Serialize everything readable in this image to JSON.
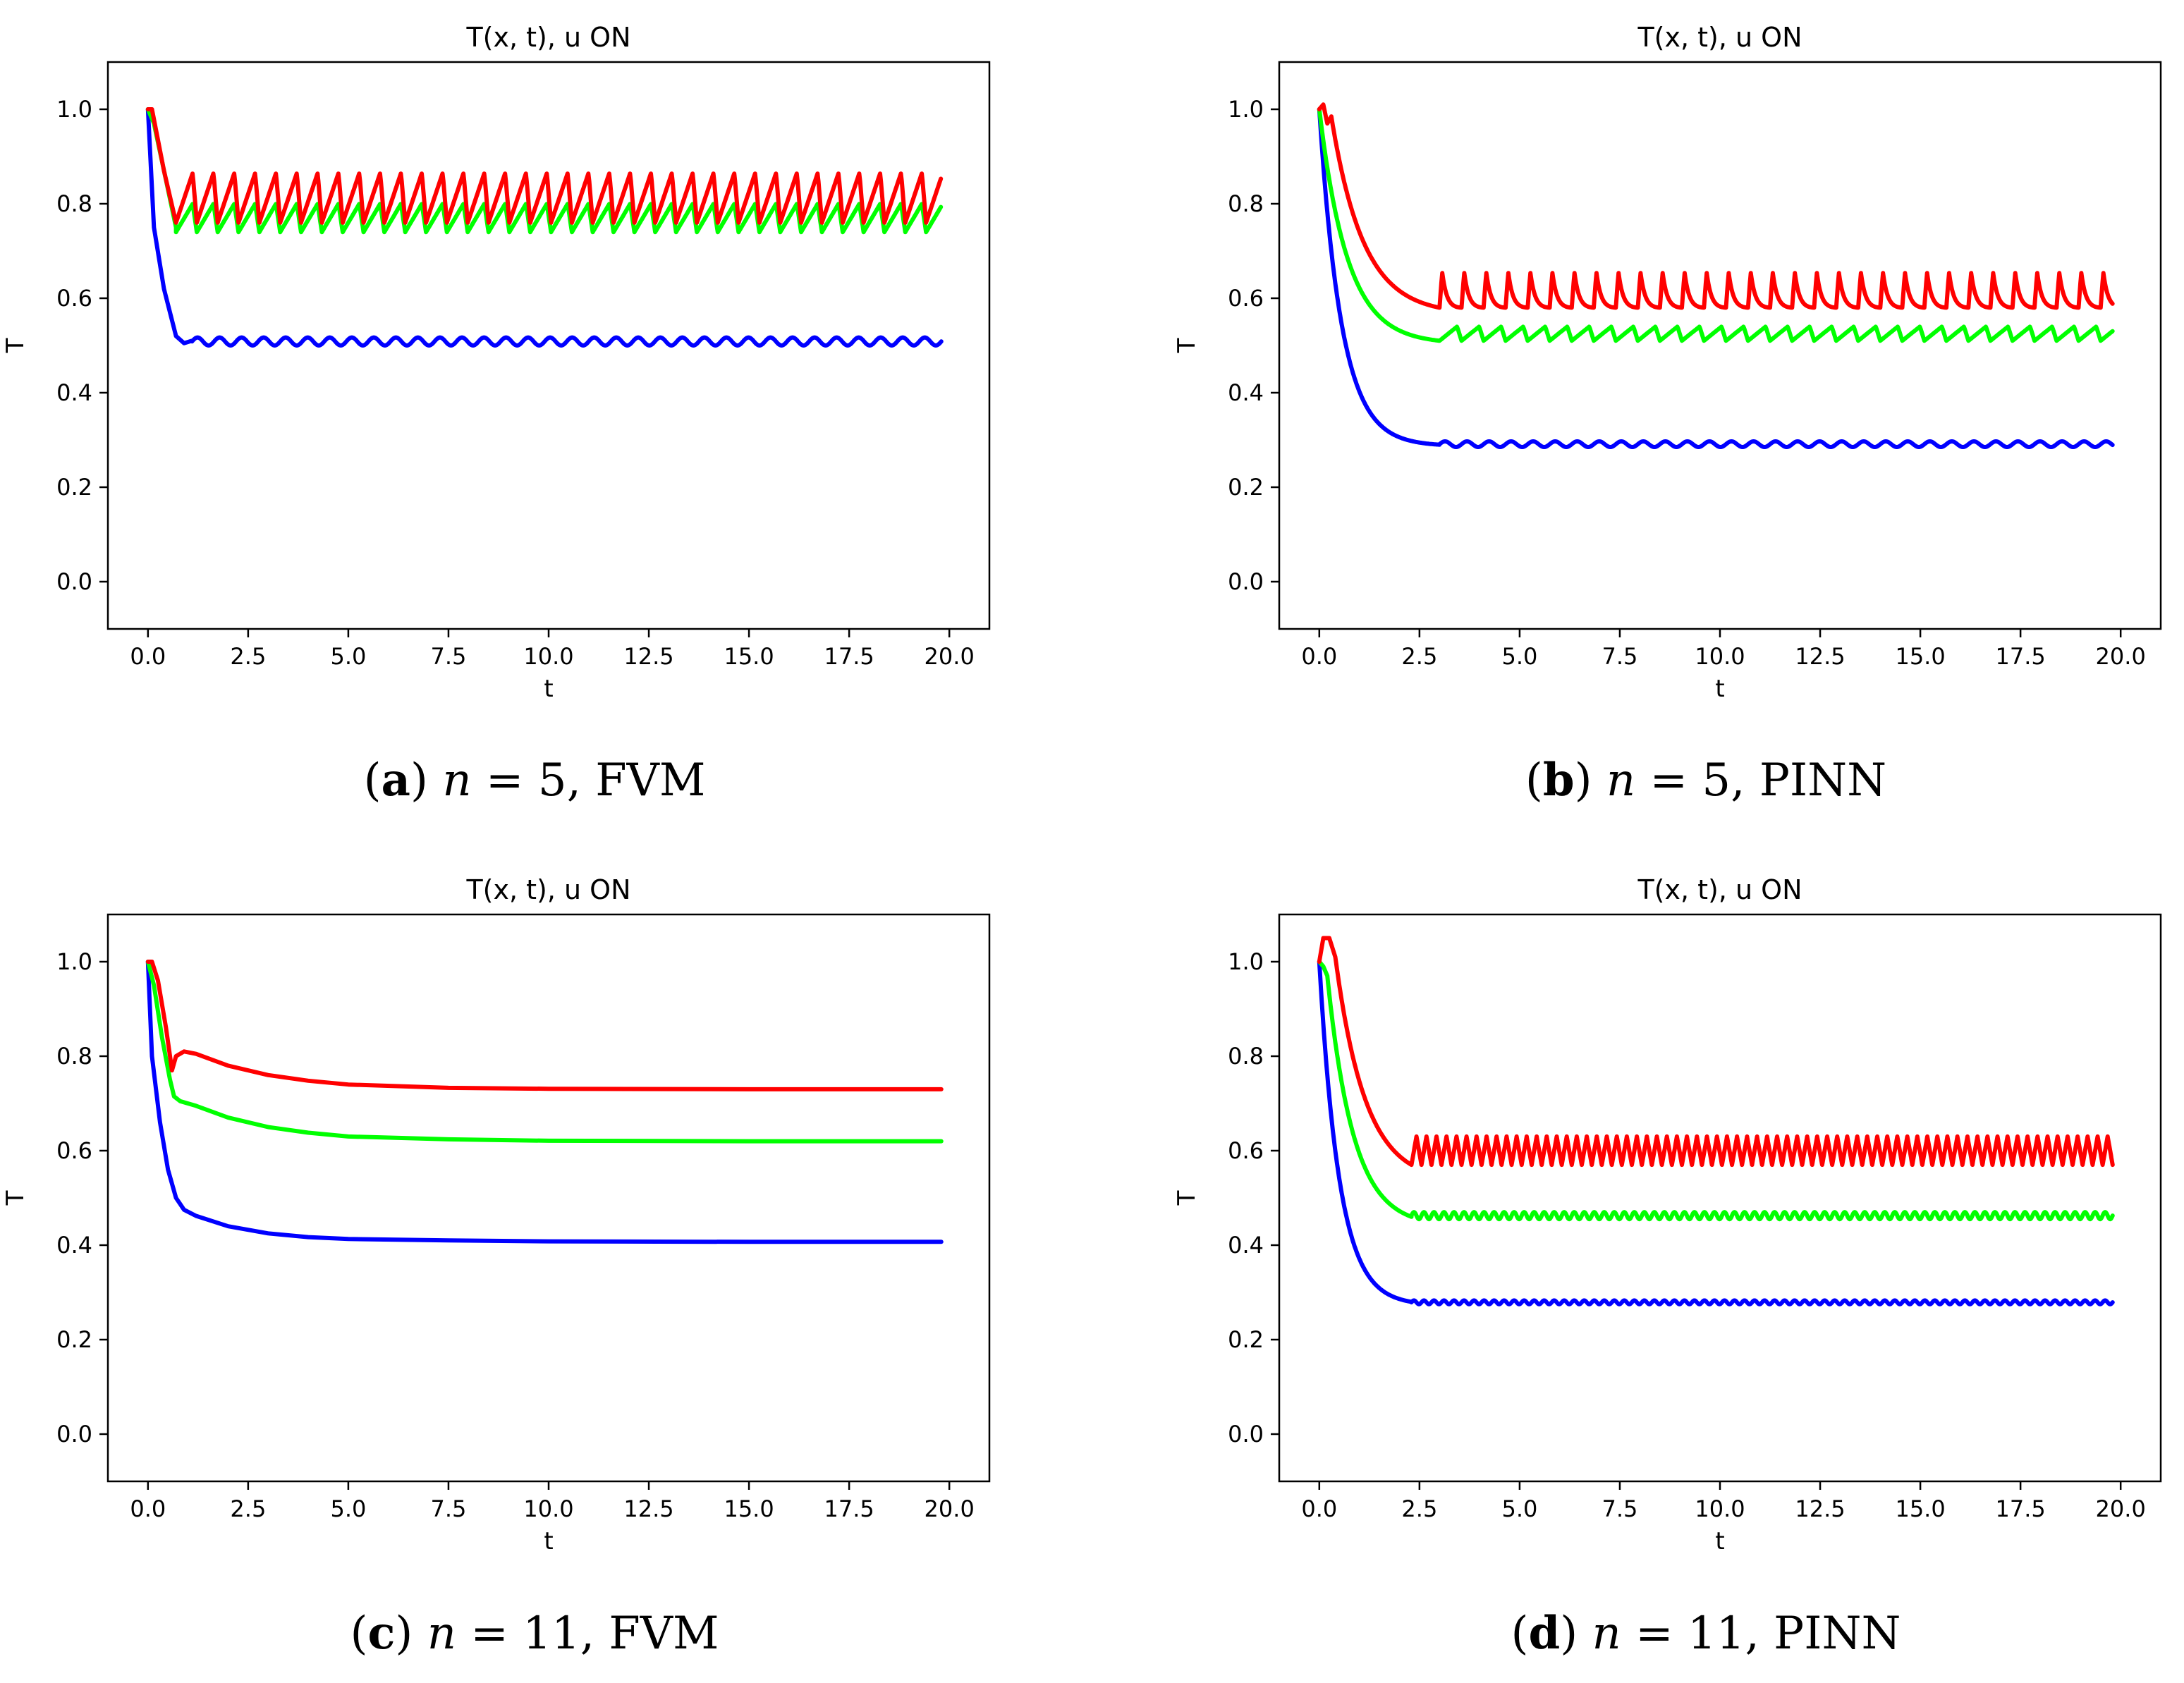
{
  "chart_data": [
    {
      "id": "a",
      "type": "line",
      "title": "T(x, t), u ON",
      "xlabel": "t",
      "ylabel": "T",
      "xlim": [
        -1.0,
        21.0
      ],
      "ylim": [
        -0.1,
        1.1
      ],
      "xticks": [
        "0.0",
        "2.5",
        "5.0",
        "7.5",
        "10.0",
        "12.5",
        "15.0",
        "17.5",
        "20.0"
      ],
      "yticks": [
        "0.0",
        "0.2",
        "0.4",
        "0.6",
        "0.8",
        "1.0"
      ],
      "caption": {
        "letter": "a",
        "var": "n",
        "rest": " = 5, FVM"
      },
      "series": [
        {
          "color": "#0000ff",
          "t_end": 19.8,
          "points": [
            [
              0,
              1.0
            ],
            [
              0.15,
              0.75
            ],
            [
              0.4,
              0.62
            ],
            [
              0.7,
              0.52
            ],
            [
              0.9,
              0.505
            ],
            [
              1.1,
              0.51
            ]
          ],
          "osc": {
            "start": 1.1,
            "period": 0.55,
            "low": 0.5,
            "high": 0.517,
            "shape": "sine"
          }
        },
        {
          "color": "#00ff00",
          "t_end": 19.8,
          "points": [
            [
              0,
              1.0
            ],
            [
              0.15,
              0.97
            ],
            [
              0.45,
              0.85
            ],
            [
              0.7,
              0.75
            ]
          ],
          "osc": {
            "start": 0.7,
            "period": 0.52,
            "low": 0.74,
            "high": 0.8,
            "shape": "saw"
          }
        },
        {
          "color": "#ff0000",
          "t_end": 19.8,
          "points": [
            [
              0,
              1.0
            ],
            [
              0.1,
              1.0
            ],
            [
              0.4,
              0.87
            ],
            [
              0.7,
              0.76
            ]
          ],
          "osc": {
            "start": 0.7,
            "period": 0.52,
            "low": 0.76,
            "high": 0.865,
            "shape": "saw"
          }
        }
      ]
    },
    {
      "id": "b",
      "type": "line",
      "title": "T(x, t), u ON",
      "xlabel": "t",
      "ylabel": "T",
      "xlim": [
        -1.0,
        21.0
      ],
      "ylim": [
        -0.1,
        1.1
      ],
      "xticks": [
        "0.0",
        "2.5",
        "5.0",
        "7.5",
        "10.0",
        "12.5",
        "15.0",
        "17.5",
        "20.0"
      ],
      "yticks": [
        "0.0",
        "0.2",
        "0.4",
        "0.6",
        "0.8",
        "1.0"
      ],
      "caption": {
        "letter": "b",
        "var": "n",
        "rest": " = 5, PINN"
      },
      "series": [
        {
          "color": "#0000ff",
          "t_end": 19.8,
          "decay": {
            "t0": 0,
            "t1": 3.0,
            "y0": 1.0,
            "y1": 0.29,
            "tau": 0.55
          },
          "osc": {
            "start": 3.0,
            "period": 0.55,
            "low": 0.285,
            "high": 0.297,
            "shape": "sine"
          }
        },
        {
          "color": "#00ff00",
          "t_end": 19.8,
          "decay": {
            "t0": 0,
            "t1": 3.0,
            "y0": 1.0,
            "y1": 0.51,
            "tau": 0.7
          },
          "osc": {
            "start": 3.0,
            "period": 0.55,
            "low": 0.51,
            "high": 0.54,
            "shape": "saw"
          }
        },
        {
          "color": "#ff0000",
          "t_end": 19.8,
          "points": [
            [
              0,
              1.0
            ],
            [
              0.1,
              1.01
            ],
            [
              0.2,
              0.97
            ],
            [
              0.3,
              0.985
            ]
          ],
          "decay": {
            "t0": 0.3,
            "t1": 3.0,
            "y0": 0.985,
            "y1": 0.58,
            "tau": 0.8
          },
          "osc": {
            "start": 3.0,
            "period": 0.55,
            "low": 0.58,
            "high": 0.655,
            "shape": "spike"
          }
        }
      ]
    },
    {
      "id": "c",
      "type": "line",
      "title": "T(x, t), u ON",
      "xlabel": "t",
      "ylabel": "T",
      "xlim": [
        -1.0,
        21.0
      ],
      "ylim": [
        -0.1,
        1.1
      ],
      "xticks": [
        "0.0",
        "2.5",
        "5.0",
        "7.5",
        "10.0",
        "12.5",
        "15.0",
        "17.5",
        "20.0"
      ],
      "yticks": [
        "0.0",
        "0.2",
        "0.4",
        "0.6",
        "0.8",
        "1.0"
      ],
      "caption": {
        "letter": "c",
        "var": "n",
        "rest": " = 11, FVM"
      },
      "series": [
        {
          "color": "#0000ff",
          "t_end": 19.8,
          "points": [
            [
              0,
              1.0
            ],
            [
              0.1,
              0.8
            ],
            [
              0.3,
              0.66
            ],
            [
              0.5,
              0.56
            ],
            [
              0.7,
              0.5
            ],
            [
              0.9,
              0.475
            ],
            [
              1.2,
              0.462
            ],
            [
              2,
              0.44
            ],
            [
              3,
              0.425
            ],
            [
              4,
              0.417
            ],
            [
              5,
              0.413
            ],
            [
              7.5,
              0.41
            ],
            [
              10,
              0.408
            ],
            [
              15,
              0.407
            ],
            [
              19.8,
              0.407
            ]
          ]
        },
        {
          "color": "#00ff00",
          "t_end": 19.8,
          "points": [
            [
              0,
              1.0
            ],
            [
              0.15,
              0.95
            ],
            [
              0.35,
              0.84
            ],
            [
              0.55,
              0.75
            ],
            [
              0.65,
              0.715
            ],
            [
              0.8,
              0.705
            ],
            [
              1.2,
              0.695
            ],
            [
              2,
              0.67
            ],
            [
              3,
              0.65
            ],
            [
              4,
              0.638
            ],
            [
              5,
              0.63
            ],
            [
              7.5,
              0.624
            ],
            [
              10,
              0.621
            ],
            [
              15,
              0.62
            ],
            [
              19.8,
              0.62
            ]
          ]
        },
        {
          "color": "#ff0000",
          "t_end": 19.8,
          "points": [
            [
              0,
              1.0
            ],
            [
              0.1,
              1.0
            ],
            [
              0.25,
              0.96
            ],
            [
              0.45,
              0.86
            ],
            [
              0.6,
              0.77
            ],
            [
              0.7,
              0.8
            ],
            [
              0.9,
              0.81
            ],
            [
              1.2,
              0.805
            ],
            [
              2,
              0.78
            ],
            [
              3,
              0.76
            ],
            [
              4,
              0.748
            ],
            [
              5,
              0.74
            ],
            [
              7.5,
              0.733
            ],
            [
              10,
              0.731
            ],
            [
              15,
              0.73
            ],
            [
              19.8,
              0.73
            ]
          ]
        }
      ]
    },
    {
      "id": "d",
      "type": "line",
      "title": "T(x, t), u ON",
      "xlabel": "t",
      "ylabel": "T",
      "xlim": [
        -1.0,
        21.0
      ],
      "ylim": [
        -0.1,
        1.1
      ],
      "xticks": [
        "0.0",
        "2.5",
        "5.0",
        "7.5",
        "10.0",
        "12.5",
        "15.0",
        "17.5",
        "20.0"
      ],
      "yticks": [
        "0.0",
        "0.2",
        "0.4",
        "0.6",
        "0.8",
        "1.0"
      ],
      "caption": {
        "letter": "d",
        "var": "n",
        "rest": " = 11, PINN"
      },
      "series": [
        {
          "color": "#0000ff",
          "t_end": 19.8,
          "decay": {
            "t0": 0,
            "t1": 2.3,
            "y0": 1.0,
            "y1": 0.28,
            "tau": 0.5
          },
          "osc": {
            "start": 2.3,
            "period": 0.25,
            "low": 0.275,
            "high": 0.283,
            "shape": "sine"
          }
        },
        {
          "color": "#00ff00",
          "t_end": 19.8,
          "points": [
            [
              0,
              1.0
            ],
            [
              0.1,
              0.99
            ],
            [
              0.2,
              0.97
            ]
          ],
          "decay": {
            "t0": 0.2,
            "t1": 2.3,
            "y0": 0.97,
            "y1": 0.46,
            "tau": 0.65
          },
          "osc": {
            "start": 2.3,
            "period": 0.25,
            "low": 0.455,
            "high": 0.47,
            "shape": "sine"
          }
        },
        {
          "color": "#ff0000",
          "t_end": 19.8,
          "points": [
            [
              0,
              1.0
            ],
            [
              0.1,
              1.05
            ],
            [
              0.25,
              1.05
            ],
            [
              0.4,
              1.01
            ]
          ],
          "decay": {
            "t0": 0.4,
            "t1": 2.3,
            "y0": 1.01,
            "y1": 0.57,
            "tau": 0.75
          },
          "osc": {
            "start": 2.3,
            "period": 0.25,
            "low": 0.57,
            "high": 0.63,
            "shape": "tri"
          }
        }
      ]
    }
  ]
}
